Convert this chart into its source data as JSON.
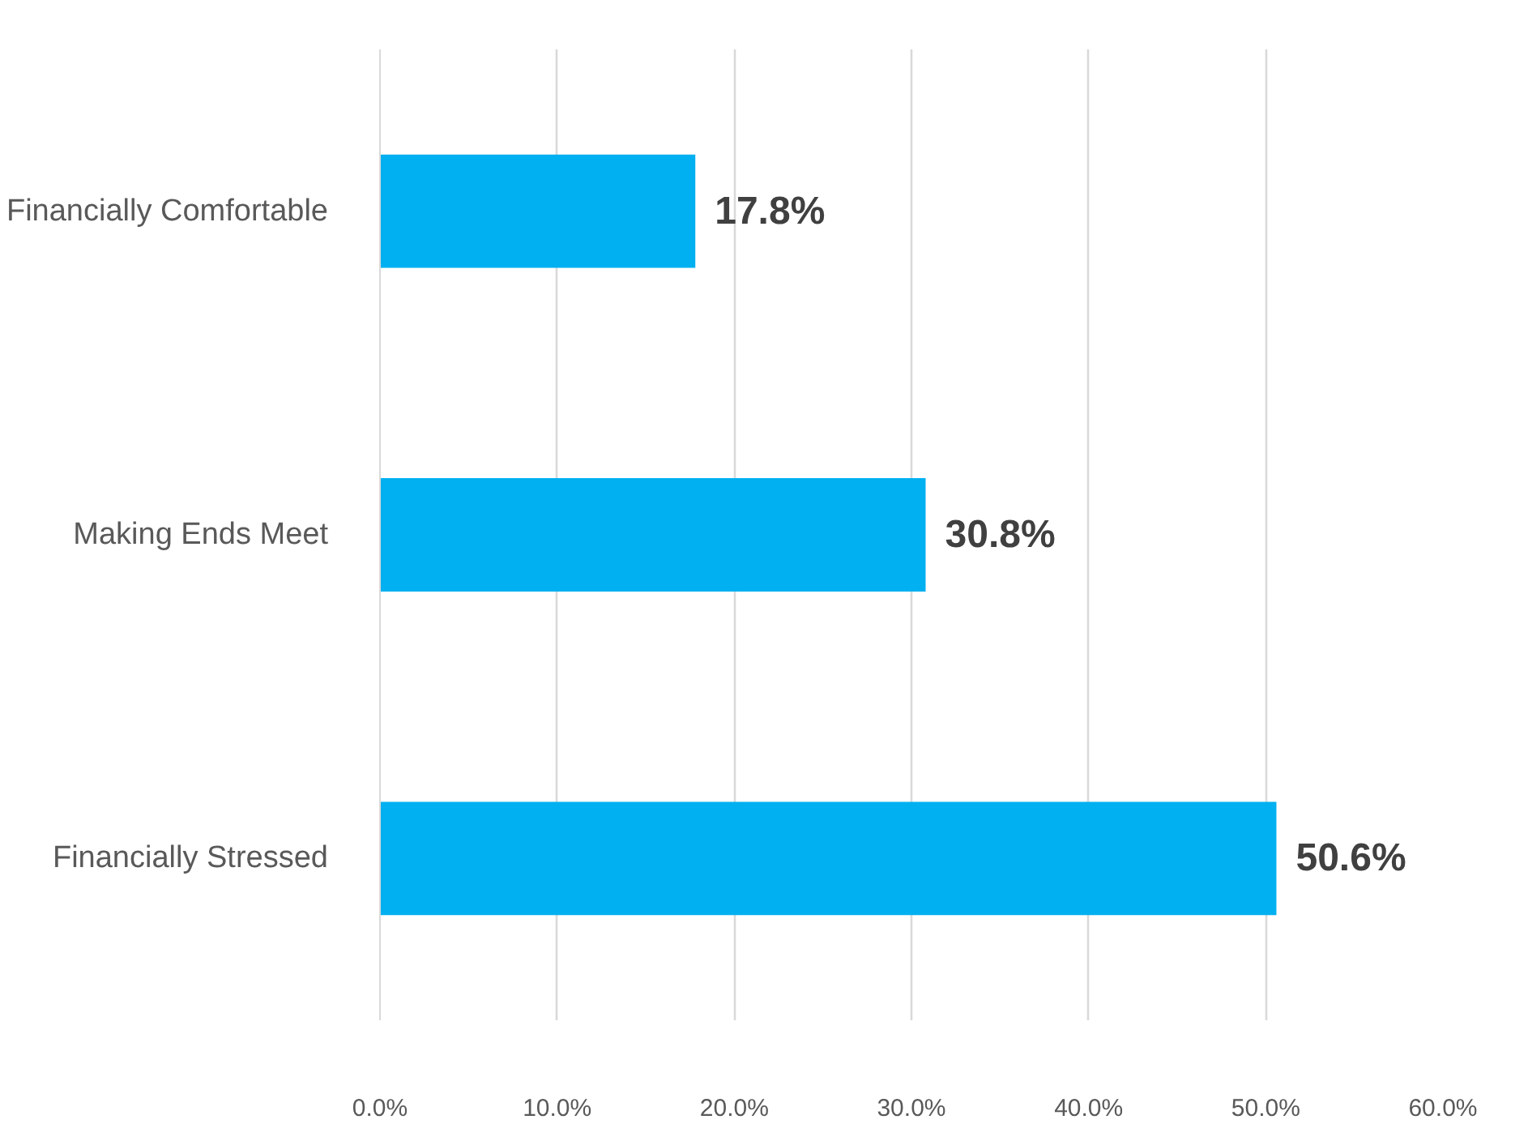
{
  "chart_data": {
    "type": "bar",
    "orientation": "horizontal",
    "categories": [
      "Financially Comfortable",
      "Making Ends Meet",
      "Financially Stressed"
    ],
    "values": [
      17.8,
      30.8,
      50.6
    ],
    "value_labels": [
      "17.8%",
      "30.8%",
      "50.6%"
    ],
    "color": "#00b0f0",
    "xlim": [
      0,
      60
    ],
    "xticks": [
      {
        "value": 0,
        "label": "0.0%"
      },
      {
        "value": 10,
        "label": "10.0%"
      },
      {
        "value": 20,
        "label": "20.0%"
      },
      {
        "value": 30,
        "label": "30.0%"
      },
      {
        "value": 40,
        "label": "40.0%"
      },
      {
        "value": 50,
        "label": "50.0%"
      },
      {
        "value": 60,
        "label": "60.0%"
      }
    ],
    "grid": "x"
  }
}
